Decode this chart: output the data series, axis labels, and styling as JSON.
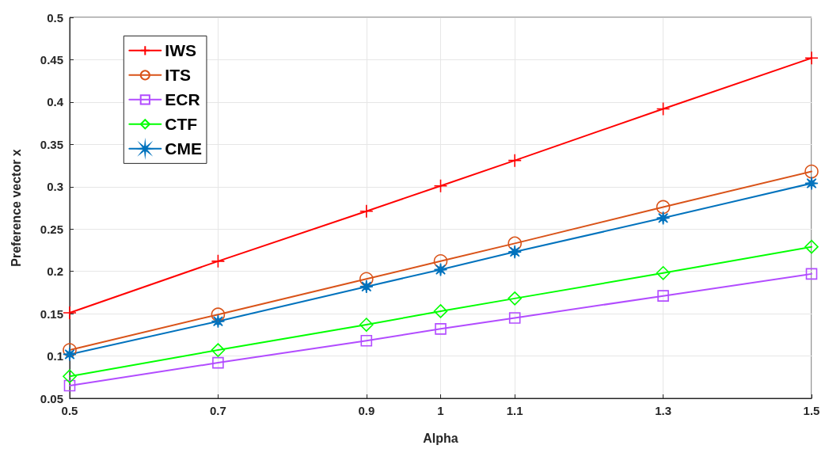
{
  "chart_data": {
    "type": "line",
    "xlabel": "Alpha",
    "ylabel": "Preference vector x",
    "x": [
      0.5,
      0.7,
      0.9,
      1,
      1.1,
      1.3,
      1.5
    ],
    "series": [
      {
        "name": "IWS",
        "color": "#ff0000",
        "marker": "cross",
        "values": [
          0.151,
          0.212,
          0.271,
          0.301,
          0.331,
          0.392,
          0.452
        ]
      },
      {
        "name": "ITS",
        "color": "#d95319",
        "marker": "circle",
        "values": [
          0.107,
          0.149,
          0.191,
          0.212,
          0.233,
          0.276,
          0.318
        ]
      },
      {
        "name": "ECR",
        "color": "#b24cff",
        "marker": "square",
        "values": [
          0.065,
          0.092,
          0.118,
          0.132,
          0.145,
          0.171,
          0.197
        ]
      },
      {
        "name": "CTF",
        "color": "#00ff00",
        "marker": "diamond",
        "values": [
          0.076,
          0.107,
          0.137,
          0.153,
          0.168,
          0.198,
          0.229
        ]
      },
      {
        "name": "CME",
        "color": "#0072bd",
        "marker": "star",
        "values": [
          0.102,
          0.141,
          0.182,
          0.202,
          0.223,
          0.263,
          0.304
        ]
      }
    ],
    "xlim": [
      0.5,
      1.5
    ],
    "xticks": [
      0.5,
      0.7,
      0.9,
      1,
      1.1,
      1.3,
      1.5
    ],
    "ylim": [
      0.05,
      0.5
    ],
    "yticks": [
      0.05,
      0.1,
      0.15,
      0.2,
      0.25,
      0.3,
      0.35,
      0.4,
      0.45,
      0.5
    ],
    "grid": true,
    "legend": "top left",
    "line_style": "solid"
  }
}
